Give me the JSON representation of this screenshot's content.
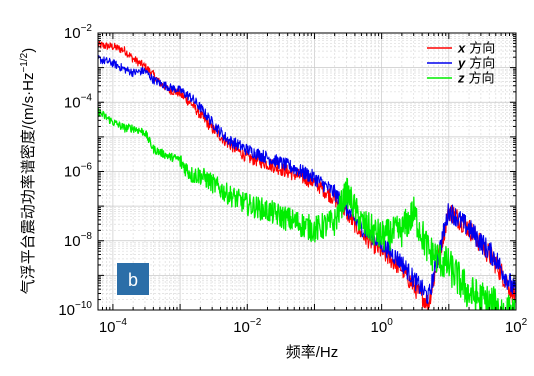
{
  "chart_data": {
    "type": "line",
    "x_scale": "log",
    "y_scale": "log",
    "xlim": [
      6e-05,
      100
    ],
    "ylim": [
      1e-10,
      0.01
    ],
    "x_ticks": [
      {
        "value": 0.0001,
        "base": "10",
        "exp": "−4"
      },
      {
        "value": 0.01,
        "base": "10",
        "exp": "−2"
      },
      {
        "value": 1,
        "base": "10",
        "exp": "0"
      },
      {
        "value": 100,
        "base": "10",
        "exp": "2"
      }
    ],
    "y_ticks": [
      {
        "value": 1e-10,
        "base": "10",
        "exp": "−10"
      },
      {
        "value": 1e-08,
        "base": "10",
        "exp": "−8"
      },
      {
        "value": 1e-06,
        "base": "10",
        "exp": "−6"
      },
      {
        "value": 0.0001,
        "base": "10",
        "exp": "−4"
      },
      {
        "value": 0.01,
        "base": "10",
        "exp": "−2"
      }
    ],
    "xlabel": "频率/Hz",
    "ylabel": "气浮平台震动功率谱密度/(m/s·Hz",
    "ylabel_sup": "−1/2",
    "ylabel_close": ")",
    "grid": true,
    "legend_position": "top-right",
    "panel_label": "b",
    "series": [
      {
        "axis": "x",
        "name": "方向",
        "color": "#ff0000",
        "x": [
          6e-05,
          0.0001,
          0.00015,
          0.0002,
          0.0003,
          0.0004,
          0.0005,
          0.0007,
          0.001,
          0.0015,
          0.002,
          0.003,
          0.005,
          0.01,
          0.02,
          0.05,
          0.1,
          0.2,
          0.3,
          0.5,
          1,
          2,
          3,
          5,
          10,
          20,
          50,
          100
        ],
        "values": [
          0.005,
          0.0045,
          0.0035,
          0.002,
          0.0012,
          0.0007,
          0.0004,
          0.00025,
          0.0002,
          0.0001,
          5e-05,
          2e-05,
          8e-06,
          3e-06,
          2e-06,
          1e-06,
          6e-07,
          2e-07,
          8e-08,
          2e-08,
          6e-09,
          2e-09,
          6e-10,
          2e-10,
          1e-07,
          3e-08,
          3e-09,
          3e-10
        ]
      },
      {
        "axis": "y",
        "name": "方向",
        "color": "#0000ee",
        "x": [
          6e-05,
          0.0001,
          0.00015,
          0.0002,
          0.0003,
          0.0004,
          0.0005,
          0.0007,
          0.001,
          0.0015,
          0.002,
          0.003,
          0.005,
          0.01,
          0.02,
          0.05,
          0.1,
          0.2,
          0.3,
          0.5,
          1,
          2,
          3,
          5,
          10,
          20,
          50,
          100
        ],
        "values": [
          0.002,
          0.0015,
          0.001,
          0.0008,
          0.0009,
          0.0005,
          0.0004,
          0.0003,
          0.00025,
          0.00015,
          8e-05,
          3e-05,
          1e-05,
          5e-06,
          3e-06,
          1.5e-06,
          8e-07,
          3e-07,
          1e-07,
          3e-08,
          1e-08,
          3e-09,
          1e-09,
          3e-10,
          1e-07,
          3e-08,
          4e-09,
          4e-10
        ]
      },
      {
        "axis": "z",
        "name": "方向",
        "color": "#00ee00",
        "x": [
          6e-05,
          0.0001,
          0.00015,
          0.0002,
          0.0003,
          0.0004,
          0.0005,
          0.0007,
          0.001,
          0.0015,
          0.002,
          0.003,
          0.005,
          0.01,
          0.02,
          0.05,
          0.1,
          0.2,
          0.3,
          0.5,
          1,
          2,
          3,
          5,
          10,
          20,
          50,
          100
        ],
        "values": [
          6e-05,
          3e-05,
          2e-05,
          2e-05,
          1.5e-05,
          5e-06,
          4e-06,
          3e-06,
          2.5e-06,
          1e-06,
          1e-06,
          6e-07,
          3e-07,
          1.5e-07,
          1e-07,
          5e-08,
          3e-08,
          5e-08,
          4e-07,
          5e-08,
          2e-08,
          3e-08,
          1e-07,
          8e-09,
          3e-09,
          5e-10,
          2e-10,
          1e-10
        ]
      }
    ]
  }
}
